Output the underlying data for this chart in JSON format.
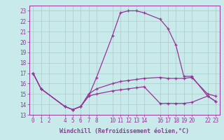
{
  "bg_color": "#c8eaea",
  "grid_color": "#b0c8c8",
  "line_color": "#993399",
  "xlabel": "Windchill (Refroidissement éolien,°C)",
  "xlim": [
    -0.5,
    23.5
  ],
  "ylim": [
    13,
    23.5
  ],
  "yticks": [
    13,
    14,
    15,
    16,
    17,
    18,
    19,
    20,
    21,
    22,
    23
  ],
  "xticks": [
    0,
    1,
    2,
    4,
    5,
    6,
    7,
    8,
    10,
    11,
    12,
    13,
    14,
    16,
    17,
    18,
    19,
    20,
    22,
    23
  ],
  "series": [
    {
      "x": [
        0,
        1,
        4,
        5,
        6,
        7,
        8,
        10,
        11,
        12,
        13,
        14,
        16,
        17,
        18,
        19,
        20,
        22,
        23
      ],
      "y": [
        17.0,
        15.5,
        13.8,
        13.5,
        13.8,
        14.8,
        16.6,
        20.6,
        22.8,
        23.0,
        23.0,
        22.8,
        22.2,
        21.3,
        19.7,
        16.7,
        16.7,
        14.8,
        14.3
      ]
    },
    {
      "x": [
        0,
        1,
        4,
        5,
        6,
        7,
        8,
        10,
        11,
        12,
        13,
        14,
        16,
        17,
        18,
        19,
        20,
        22,
        23
      ],
      "y": [
        17.0,
        15.5,
        13.8,
        13.5,
        13.8,
        15.0,
        15.5,
        16.0,
        16.2,
        16.3,
        16.4,
        16.5,
        16.6,
        16.5,
        16.5,
        16.5,
        16.6,
        15.0,
        14.8
      ]
    },
    {
      "x": [
        0,
        1,
        4,
        5,
        6,
        7,
        8,
        10,
        11,
        12,
        13,
        14,
        16,
        17,
        18,
        19,
        20,
        22,
        23
      ],
      "y": [
        17.0,
        15.5,
        13.8,
        13.5,
        13.8,
        14.8,
        15.0,
        15.3,
        15.4,
        15.5,
        15.6,
        15.7,
        14.1,
        14.1,
        14.1,
        14.1,
        14.2,
        14.8,
        14.3
      ]
    }
  ],
  "font_size_ticks": 5.5,
  "font_size_xlabel": 6.0
}
